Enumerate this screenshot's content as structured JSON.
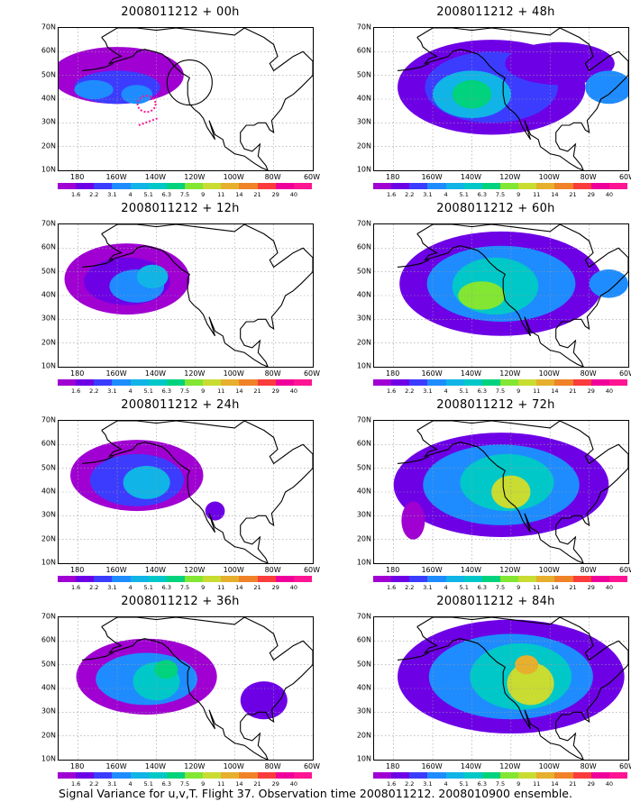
{
  "caption": "Signal Variance for u,v,T. Flight 37. Observation time 2008011212. 2008010900 ensemble.",
  "panels": [
    {
      "title": "2008011212 + 00h"
    },
    {
      "title": "2008011212 + 48h"
    },
    {
      "title": "2008011212 + 12h"
    },
    {
      "title": "2008011212 + 60h"
    },
    {
      "title": "2008011212 + 24h"
    },
    {
      "title": "2008011212 + 72h"
    },
    {
      "title": "2008011212 + 36h"
    },
    {
      "title": "2008011212 + 84h"
    }
  ],
  "axes": {
    "lat": [
      "70N",
      "60N",
      "50N",
      "40N",
      "30N",
      "20N",
      "10N"
    ],
    "lon": [
      "180",
      "160W",
      "140W",
      "120W",
      "100W",
      "80W",
      "60W"
    ]
  },
  "colorbar": {
    "labels": [
      "1.6",
      "2.2",
      "3.1",
      "4",
      "5.1",
      "6.3",
      "7.5",
      "9",
      "11",
      "14",
      "21",
      "29",
      "40"
    ],
    "colors": [
      "#a000d2",
      "#6e00e6",
      "#3c3cff",
      "#1e8cff",
      "#10b4e6",
      "#00c8c8",
      "#00d27d",
      "#82e632",
      "#c8dc32",
      "#e6af2d",
      "#f08228",
      "#fa3c3c",
      "#f0009b",
      "#ff1493"
    ]
  },
  "colors": {
    "outline": "#000000",
    "grid": "#9a9a9a",
    "observation_marks": "#ff1493"
  }
}
